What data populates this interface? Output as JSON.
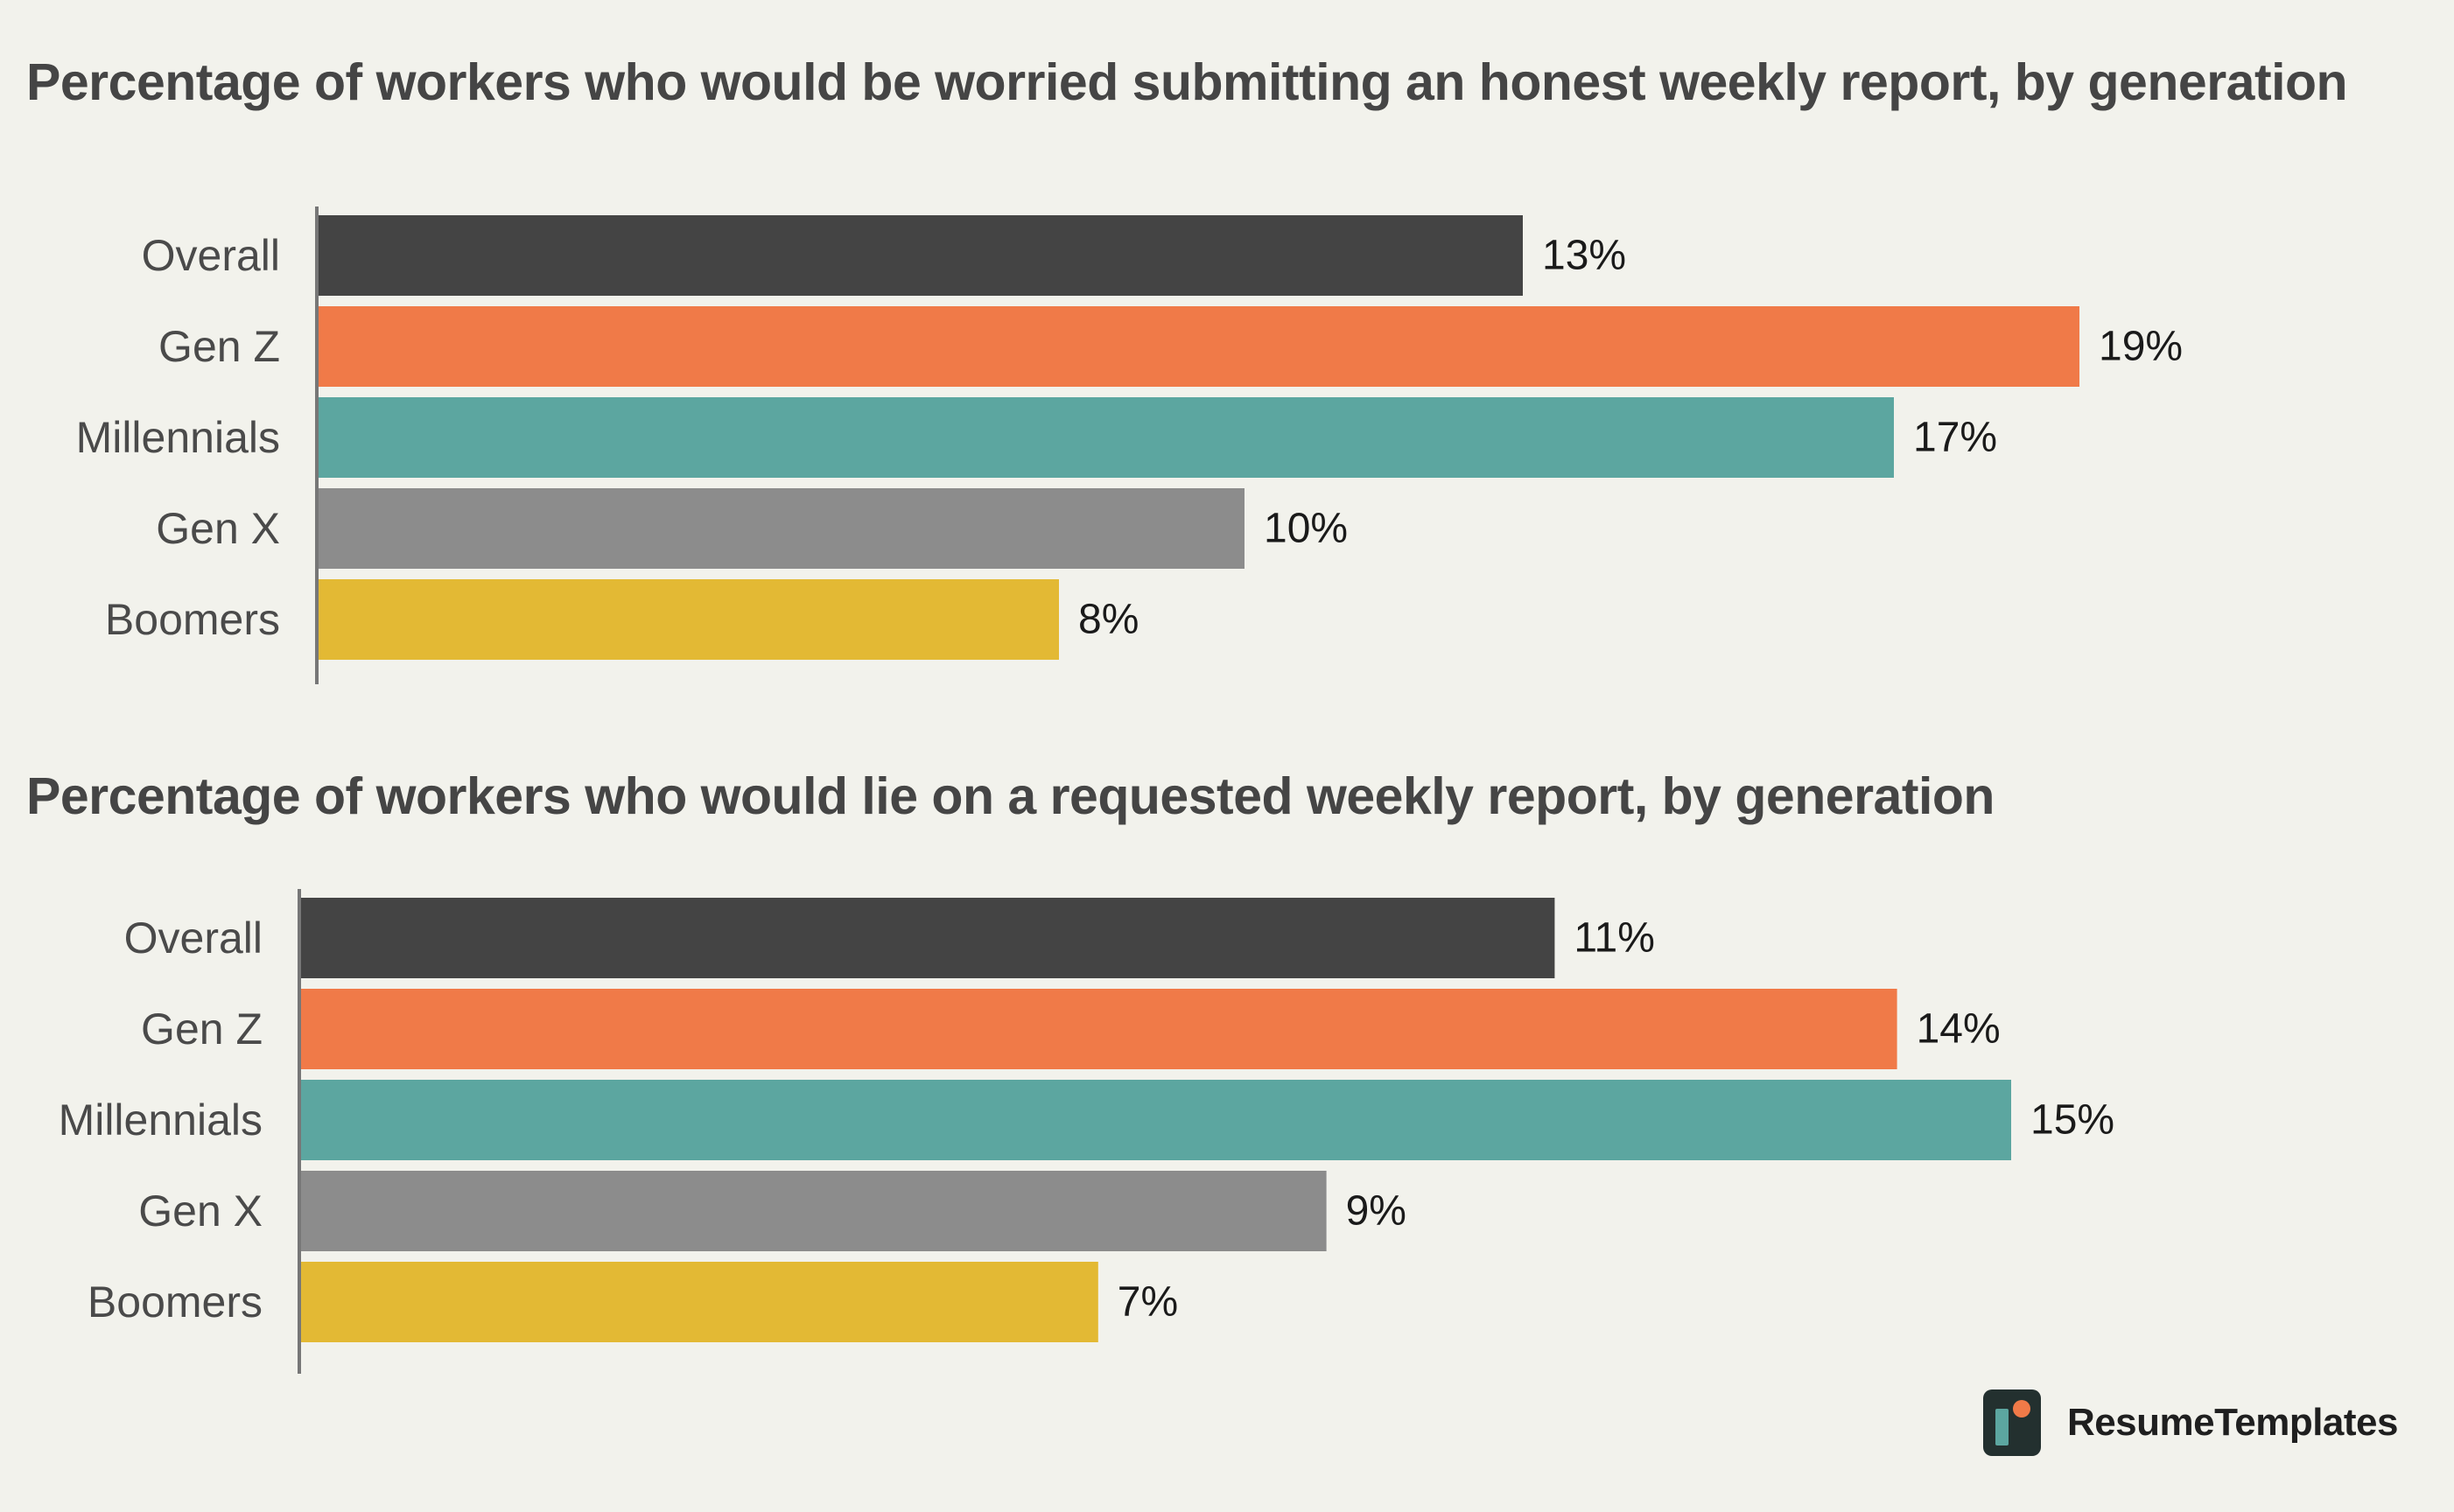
{
  "colors": {
    "background": "#f2f2ec",
    "Overall": "#444444",
    "Gen Z": "#f07a48",
    "Millennials": "#5ca6a0",
    "Gen X": "#8c8c8c",
    "Boomers": "#e3b934",
    "axis": "#777777"
  },
  "brand": {
    "icon": "resume-templates-logo-icon",
    "name": "ResumeTemplates"
  },
  "chart_data": [
    {
      "type": "bar",
      "orientation": "horizontal",
      "title": "Percentage of workers who would be worried submitting an honest weekly report, by generation",
      "categories": [
        "Overall",
        "Gen Z",
        "Millennials",
        "Gen X",
        "Boomers"
      ],
      "values": [
        13,
        19,
        17,
        10,
        8
      ],
      "value_labels": [
        "13%",
        "19%",
        "17%",
        "10%",
        "8%"
      ],
      "xlabel": "",
      "ylabel": "",
      "xlim": [
        0,
        20
      ],
      "grid": false,
      "legend": "none"
    },
    {
      "type": "bar",
      "orientation": "horizontal",
      "title": "Percentage of workers who would lie on a requested weekly report, by generation",
      "categories": [
        "Overall",
        "Gen Z",
        "Millennials",
        "Gen X",
        "Boomers"
      ],
      "values": [
        11,
        14,
        15,
        9,
        7
      ],
      "value_labels": [
        "11%",
        "14%",
        "15%",
        "9%",
        "7%"
      ],
      "xlabel": "",
      "ylabel": "",
      "xlim": [
        0,
        16
      ],
      "grid": false,
      "legend": "none"
    }
  ]
}
